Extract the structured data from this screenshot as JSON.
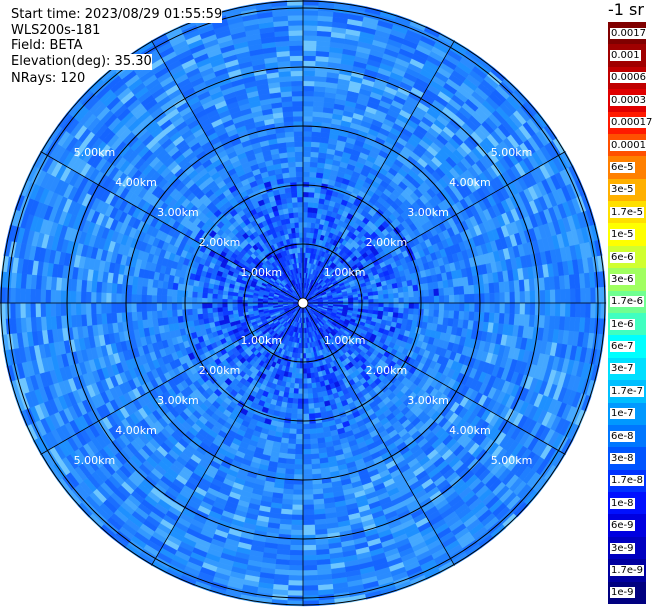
{
  "header": {
    "start_time": "Start time: 2023/08/29 01:55:59",
    "instrument": "WLS200s-181",
    "field": "Field: BETA",
    "elevation": "Elevation(deg): 35.30",
    "nrays": "NRays: 120"
  },
  "plot": {
    "range_labels": [
      "1.00km",
      "2.00km",
      "3.00km",
      "4.00km",
      "5.00km"
    ]
  },
  "colorbar": {
    "unit": "-1 sr",
    "ticks": [
      "0.0017",
      "0.001",
      "0.0006",
      "0.0003",
      "0.00017",
      "0.0001",
      "6e-5",
      "3e-5",
      "1.7e-5",
      "1e-5",
      "6e-6",
      "3e-6",
      "1.7e-6",
      "1e-6",
      "6e-7",
      "3e-7",
      "1.7e-7",
      "1e-7",
      "6e-8",
      "3e-8",
      "1.7e-8",
      "1e-8",
      "6e-9",
      "3e-9",
      "1.7e-9",
      "1e-9"
    ],
    "colors": [
      "#800000",
      "#a00000",
      "#c00000",
      "#e00000",
      "#ff1a00",
      "#ff5000",
      "#ff8000",
      "#ffb000",
      "#ffdf00",
      "#ffff00",
      "#d0ff30",
      "#a0ff60",
      "#70ff90",
      "#40ffc0",
      "#00ffff",
      "#00dfff",
      "#00bfff",
      "#0099ff",
      "#0077ff",
      "#0055ff",
      "#0033ff",
      "#0010ff",
      "#0000e0",
      "#0000c0",
      "#0000a0",
      "#000080"
    ]
  }
}
